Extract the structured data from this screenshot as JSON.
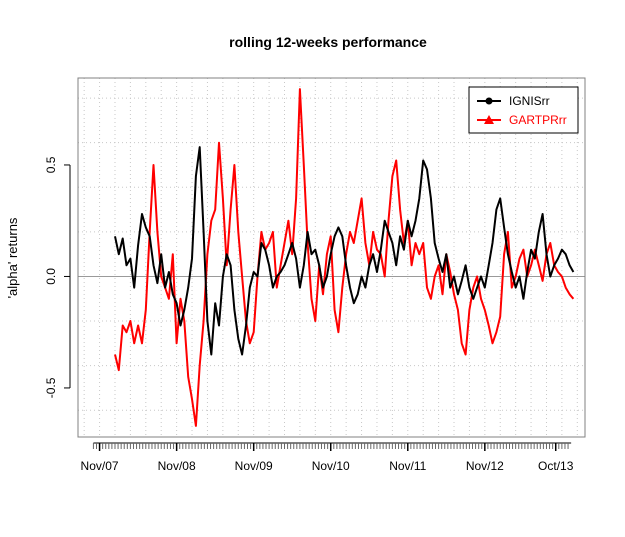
{
  "chart_data": {
    "type": "line",
    "title": "rolling 12-weeks performance",
    "xlabel": "",
    "ylabel": "'alpha' returns",
    "ylim": [
      -0.72,
      0.89
    ],
    "y_ticks": [
      "-0.5",
      "0.0",
      "0.5"
    ],
    "y_tick_values": [
      -0.5,
      0.0,
      0.5
    ],
    "x_tick_labels": [
      "Nov/07",
      "Nov/08",
      "Nov/09",
      "Nov/10",
      "Nov/11",
      "Nov/12",
      "Oct/13"
    ],
    "x_tick_values": [
      0.0,
      1.0,
      2.0,
      3.0,
      4.0,
      5.0,
      5.92
    ],
    "xlim": [
      -0.28,
      6.3
    ],
    "grid": true,
    "legend_position": "top-right",
    "series": [
      {
        "name": "IGNISrr",
        "color": "#000000",
        "marker": "circle",
        "x": [
          0.2,
          0.25,
          0.3,
          0.35,
          0.4,
          0.45,
          0.5,
          0.55,
          0.6,
          0.65,
          0.7,
          0.75,
          0.8,
          0.85,
          0.9,
          0.95,
          1.0,
          1.05,
          1.1,
          1.15,
          1.2,
          1.25,
          1.3,
          1.35,
          1.4,
          1.45,
          1.5,
          1.55,
          1.6,
          1.65,
          1.7,
          1.75,
          1.8,
          1.85,
          1.9,
          1.95,
          2.0,
          2.05,
          2.1,
          2.15,
          2.2,
          2.25,
          2.3,
          2.35,
          2.4,
          2.45,
          2.5,
          2.55,
          2.6,
          2.65,
          2.7,
          2.75,
          2.8,
          2.85,
          2.9,
          2.95,
          3.0,
          3.05,
          3.1,
          3.15,
          3.2,
          3.25,
          3.3,
          3.35,
          3.4,
          3.45,
          3.5,
          3.55,
          3.6,
          3.65,
          3.7,
          3.75,
          3.8,
          3.85,
          3.9,
          3.95,
          4.0,
          4.05,
          4.1,
          4.15,
          4.2,
          4.25,
          4.3,
          4.35,
          4.4,
          4.45,
          4.5,
          4.55,
          4.6,
          4.65,
          4.7,
          4.75,
          4.8,
          4.85,
          4.9,
          4.95,
          5.0,
          5.05,
          5.1,
          5.15,
          5.2,
          5.25,
          5.3,
          5.35,
          5.4,
          5.45,
          5.5,
          5.55,
          5.6,
          5.65,
          5.7,
          5.75,
          5.8,
          5.85,
          5.9,
          5.95,
          6.0,
          6.05,
          6.1,
          6.15
        ],
        "values": [
          0.18,
          0.1,
          0.17,
          0.05,
          0.08,
          -0.05,
          0.14,
          0.28,
          0.22,
          0.18,
          0.05,
          -0.03,
          0.1,
          -0.05,
          0.02,
          -0.08,
          -0.12,
          -0.22,
          -0.15,
          -0.05,
          0.08,
          0.45,
          0.58,
          0.2,
          -0.2,
          -0.35,
          -0.12,
          -0.22,
          0.0,
          0.1,
          0.05,
          -0.15,
          -0.28,
          -0.35,
          -0.22,
          -0.05,
          0.02,
          0.0,
          0.15,
          0.12,
          0.05,
          -0.05,
          0.0,
          0.02,
          0.05,
          0.1,
          0.15,
          0.08,
          -0.05,
          0.05,
          0.2,
          0.1,
          0.12,
          0.05,
          -0.05,
          0.0,
          0.1,
          0.18,
          0.22,
          0.18,
          0.05,
          -0.05,
          -0.12,
          -0.08,
          0.0,
          -0.05,
          0.05,
          0.1,
          0.02,
          0.12,
          0.25,
          0.2,
          0.15,
          0.05,
          0.18,
          0.12,
          0.25,
          0.18,
          0.25,
          0.35,
          0.52,
          0.48,
          0.35,
          0.15,
          0.08,
          0.02,
          0.1,
          -0.05,
          0.0,
          -0.08,
          -0.02,
          0.05,
          -0.05,
          -0.1,
          -0.05,
          0.0,
          -0.05,
          0.05,
          0.15,
          0.3,
          0.35,
          0.22,
          0.1,
          0.02,
          -0.05,
          0.0,
          -0.1,
          0.02,
          0.12,
          0.08,
          0.2,
          0.28,
          0.1,
          0.0,
          0.05,
          0.08,
          0.12,
          0.1,
          0.05,
          0.02
        ]
      },
      {
        "name": "GARTPRrr",
        "color": "#ff0000",
        "marker": "triangle",
        "x": [
          0.2,
          0.25,
          0.3,
          0.35,
          0.4,
          0.45,
          0.5,
          0.55,
          0.6,
          0.65,
          0.7,
          0.75,
          0.8,
          0.85,
          0.9,
          0.95,
          1.0,
          1.05,
          1.1,
          1.15,
          1.2,
          1.25,
          1.3,
          1.35,
          1.4,
          1.45,
          1.5,
          1.55,
          1.6,
          1.65,
          1.7,
          1.75,
          1.8,
          1.85,
          1.9,
          1.95,
          2.0,
          2.05,
          2.1,
          2.15,
          2.2,
          2.25,
          2.3,
          2.35,
          2.4,
          2.45,
          2.5,
          2.55,
          2.6,
          2.65,
          2.7,
          2.75,
          2.8,
          2.85,
          2.9,
          2.95,
          3.0,
          3.05,
          3.1,
          3.15,
          3.2,
          3.25,
          3.3,
          3.35,
          3.4,
          3.45,
          3.5,
          3.55,
          3.6,
          3.65,
          3.7,
          3.75,
          3.8,
          3.85,
          3.9,
          3.95,
          4.0,
          4.05,
          4.1,
          4.15,
          4.2,
          4.25,
          4.3,
          4.35,
          4.4,
          4.45,
          4.5,
          4.55,
          4.6,
          4.65,
          4.7,
          4.75,
          4.8,
          4.85,
          4.9,
          4.95,
          5.0,
          5.05,
          5.1,
          5.15,
          5.2,
          5.25,
          5.3,
          5.35,
          5.4,
          5.45,
          5.5,
          5.55,
          5.6,
          5.65,
          5.7,
          5.75,
          5.8,
          5.85,
          5.9,
          5.95,
          6.0,
          6.05,
          6.1,
          6.15
        ],
        "values": [
          -0.35,
          -0.42,
          -0.22,
          -0.25,
          -0.2,
          -0.3,
          -0.22,
          -0.3,
          -0.15,
          0.2,
          0.5,
          0.2,
          0.0,
          -0.05,
          -0.1,
          0.1,
          -0.3,
          -0.1,
          -0.2,
          -0.45,
          -0.55,
          -0.67,
          -0.4,
          -0.2,
          0.1,
          0.25,
          0.3,
          0.6,
          0.35,
          0.05,
          0.3,
          0.5,
          0.2,
          0.0,
          -0.2,
          -0.3,
          -0.25,
          0.0,
          0.2,
          0.12,
          0.15,
          0.2,
          -0.05,
          0.05,
          0.15,
          0.25,
          0.1,
          0.35,
          0.84,
          0.5,
          0.15,
          -0.1,
          -0.2,
          0.05,
          -0.08,
          0.1,
          0.18,
          -0.15,
          -0.25,
          -0.05,
          0.1,
          0.2,
          0.15,
          0.25,
          0.35,
          0.15,
          0.05,
          0.2,
          0.12,
          0.1,
          0.0,
          0.25,
          0.45,
          0.52,
          0.3,
          0.15,
          0.25,
          0.05,
          0.15,
          0.1,
          0.15,
          -0.05,
          -0.1,
          0.0,
          0.05,
          -0.08,
          0.1,
          0.02,
          -0.08,
          -0.15,
          -0.3,
          -0.35,
          -0.15,
          -0.05,
          0.0,
          -0.1,
          -0.15,
          -0.22,
          -0.3,
          -0.25,
          -0.18,
          0.1,
          0.2,
          -0.05,
          0.0,
          0.08,
          0.12,
          0.0,
          0.05,
          0.12,
          0.05,
          -0.02,
          0.1,
          0.15,
          0.05,
          0.02,
          0.0,
          -0.05,
          -0.08,
          -0.1
        ]
      }
    ]
  }
}
